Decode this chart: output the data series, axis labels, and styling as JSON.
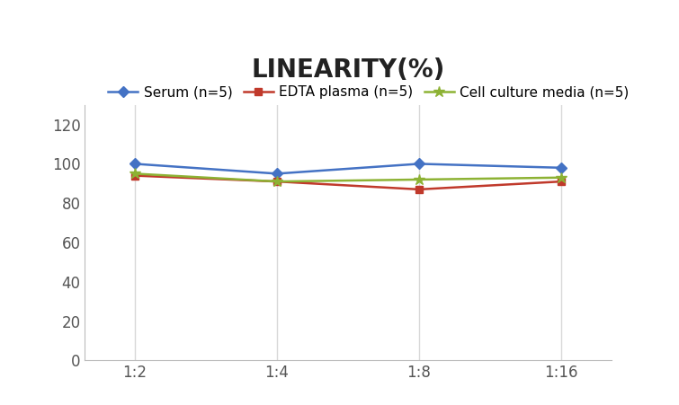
{
  "title": "LINEARITY(%)",
  "title_fontsize": 20,
  "title_fontweight": "bold",
  "x_labels": [
    "1:2",
    "1:4",
    "1:8",
    "1:16"
  ],
  "x_positions": [
    0,
    1,
    2,
    3
  ],
  "series": [
    {
      "label": "Serum (n=5)",
      "values": [
        100,
        95,
        100,
        98
      ],
      "color": "#4472C4",
      "marker": "D",
      "markersize": 6,
      "linewidth": 1.8
    },
    {
      "label": "EDTA plasma (n=5)",
      "values": [
        94,
        91,
        87,
        91
      ],
      "color": "#C0392B",
      "marker": "s",
      "markersize": 6,
      "linewidth": 1.8
    },
    {
      "label": "Cell culture media (n=5)",
      "values": [
        95,
        91,
        92,
        93
      ],
      "color": "#8DB234",
      "marker": "*",
      "markersize": 9,
      "linewidth": 1.8
    }
  ],
  "ylim": [
    0,
    130
  ],
  "yticks": [
    0,
    20,
    40,
    60,
    80,
    100,
    120
  ],
  "grid_color": "#D8D8D8",
  "background_color": "#FFFFFF",
  "legend_fontsize": 11,
  "tick_fontsize": 12
}
